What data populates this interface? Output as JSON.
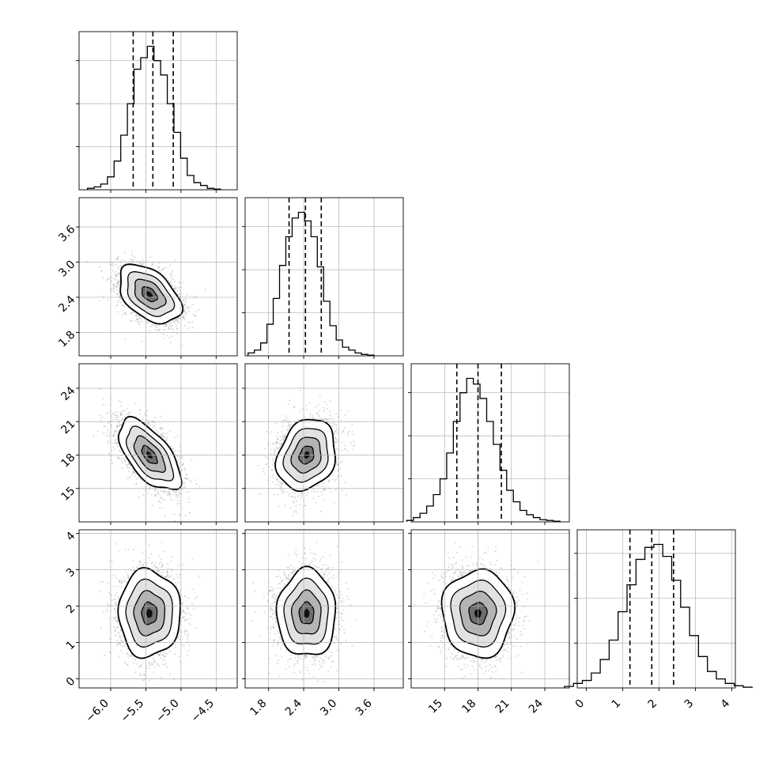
{
  "chart_data": {
    "type": "corner",
    "title": "",
    "grid": true,
    "parameters": [
      {
        "label": "",
        "range": [
          -6.45,
          -4.2
        ],
        "ticks": [
          -6.0,
          -5.5,
          -5.0,
          -4.5
        ],
        "tick_labels": [
          "−6.0",
          "−5.5",
          "−5.0",
          "−4.5"
        ],
        "mean": -5.45,
        "sd": 0.22,
        "quantiles": [
          -5.68,
          -5.4,
          -5.11
        ],
        "hist_counts": [
          1,
          2,
          4,
          9,
          20,
          38,
          60,
          84,
          92,
          100,
          90,
          80,
          60,
          40,
          22,
          10,
          5,
          3,
          1,
          0.5
        ],
        "hist_yticks": [
          30,
          60,
          90
        ]
      },
      {
        "label": "",
        "range": [
          1.4,
          4.1
        ],
        "ticks": [
          1.8,
          2.4,
          3.0,
          3.6
        ],
        "tick_labels": [
          "1.8",
          "2.4",
          "3.0",
          "3.6"
        ],
        "mean": 2.45,
        "sd": 0.25,
        "quantiles": [
          2.15,
          2.43,
          2.7
        ],
        "hist_counts": [
          2,
          4,
          9,
          22,
          40,
          63,
          83,
          96,
          100,
          94,
          83,
          62,
          38,
          21,
          11,
          6,
          4,
          2,
          1,
          0.5
        ],
        "hist_yticks": [
          30,
          60,
          90
        ]
      },
      {
        "label": "",
        "range": [
          12.0,
          26.2
        ],
        "ticks": [
          15,
          18,
          21,
          24
        ],
        "tick_labels": [
          "15",
          "18",
          "21",
          "24"
        ],
        "mean": 18.0,
        "sd": 1.6,
        "quantiles": [
          16.1,
          18.0,
          20.1
        ],
        "hist_counts": [
          1,
          3,
          6,
          11,
          19,
          30,
          48,
          70,
          90,
          100,
          96,
          86,
          70,
          54,
          36,
          22,
          14,
          8,
          5,
          3,
          1.5,
          1,
          0.5
        ],
        "hist_yticks": [
          30,
          60,
          90
        ]
      },
      {
        "label": "",
        "range": [
          -0.25,
          4.1
        ],
        "ticks": [
          0,
          1,
          2,
          3,
          4
        ],
        "tick_labels": [
          "0",
          "1",
          "2",
          "3",
          "4"
        ],
        "mean": 1.8,
        "sd": 0.6,
        "quantiles": [
          1.2,
          1.8,
          2.4
        ],
        "hist_counts": [
          1,
          3,
          5,
          10,
          19,
          32,
          51,
          69,
          86,
          94,
          96,
          88,
          72,
          54,
          35,
          21,
          11,
          6,
          3,
          1.5,
          0.5
        ],
        "hist_yticks": [
          30,
          60,
          90
        ]
      }
    ],
    "correlations": {
      "1-0": -0.45,
      "2-0": -0.62,
      "2-1": 0.2,
      "3-0": 0.0,
      "3-1": 0.0,
      "3-2": 0.0
    },
    "contour_levels_sigma": [
      0.5,
      1.0,
      1.5,
      2.0
    ],
    "colors": {
      "line": "#000000",
      "grid": "#b0b0b0",
      "scatter": "#9a9a9a"
    }
  }
}
